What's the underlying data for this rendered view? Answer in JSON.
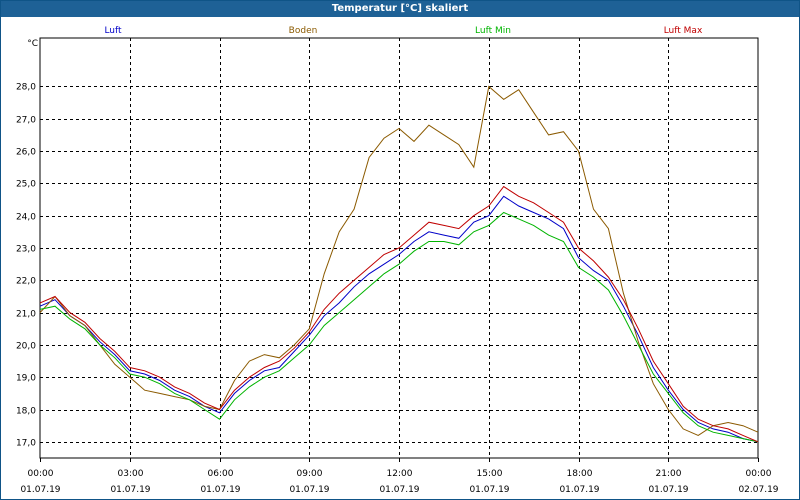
{
  "window": {
    "title": "Temperatur [°C] skaliert"
  },
  "chart_data": {
    "type": "line",
    "title": "Temperatur [°C] skaliert",
    "ylabel": "°C",
    "xlabel": "",
    "ylim": [
      16.5,
      29.5
    ],
    "xlim": [
      0,
      24
    ],
    "grid": true,
    "y_ticks": [
      17.0,
      18.0,
      19.0,
      20.0,
      21.0,
      22.0,
      23.0,
      24.0,
      25.0,
      26.0,
      27.0,
      28.0
    ],
    "y_tick_labels": [
      "17,0",
      "18,0",
      "19,0",
      "20,0",
      "21,0",
      "22,0",
      "23,0",
      "24,0",
      "25,0",
      "26,0",
      "27,0",
      "28,0"
    ],
    "x_ticks": [
      0,
      3,
      6,
      9,
      12,
      15,
      18,
      21,
      24
    ],
    "x_tick_labels": [
      {
        "time": "00:00",
        "date": "01.07.19"
      },
      {
        "time": "03:00",
        "date": "01.07.19"
      },
      {
        "time": "06:00",
        "date": "01.07.19"
      },
      {
        "time": "09:00",
        "date": "01.07.19"
      },
      {
        "time": "12:00",
        "date": "01.07.19"
      },
      {
        "time": "15:00",
        "date": "01.07.19"
      },
      {
        "time": "18:00",
        "date": "01.07.19"
      },
      {
        "time": "21:00",
        "date": "01.07.19"
      },
      {
        "time": "00:00",
        "date": "02.07.19"
      }
    ],
    "x": [
      0,
      0.5,
      1,
      1.5,
      2,
      2.5,
      3,
      3.5,
      4,
      4.5,
      5,
      5.5,
      6,
      6.5,
      7,
      7.5,
      8,
      8.5,
      9,
      9.5,
      10,
      10.5,
      11,
      11.5,
      12,
      12.5,
      13,
      13.5,
      14,
      14.5,
      15,
      15.5,
      16,
      16.5,
      17,
      17.5,
      18,
      18.5,
      19,
      19.5,
      20,
      20.5,
      21,
      21.5,
      22,
      22.5,
      23,
      23.5,
      24
    ],
    "legend": [
      "Luft",
      "Boden",
      "Luft Min",
      "Luft Max"
    ],
    "series": [
      {
        "name": "Luft",
        "color": "#0000c8",
        "values": [
          21.2,
          21.4,
          20.9,
          20.6,
          20.1,
          19.7,
          19.2,
          19.1,
          18.9,
          18.6,
          18.4,
          18.1,
          17.9,
          18.5,
          18.9,
          19.2,
          19.3,
          19.8,
          20.3,
          20.9,
          21.3,
          21.8,
          22.2,
          22.5,
          22.8,
          23.2,
          23.5,
          23.4,
          23.3,
          23.8,
          24.0,
          24.6,
          24.3,
          24.1,
          23.9,
          23.6,
          22.7,
          22.3,
          22.0,
          21.2,
          20.3,
          19.3,
          18.6,
          18.0,
          17.6,
          17.4,
          17.3,
          17.1,
          17.0
        ]
      },
      {
        "name": "Boden",
        "color": "#8b5a00",
        "values": [
          21.0,
          21.5,
          20.9,
          20.6,
          20.0,
          19.4,
          19.0,
          18.6,
          18.5,
          18.4,
          18.3,
          18.1,
          18.0,
          18.9,
          19.5,
          19.7,
          19.6,
          20.0,
          20.5,
          22.2,
          23.5,
          24.2,
          25.8,
          26.4,
          26.7,
          26.3,
          26.8,
          26.5,
          26.2,
          25.5,
          28.0,
          27.6,
          27.9,
          27.2,
          26.5,
          26.6,
          26.0,
          24.2,
          23.6,
          21.6,
          20.1,
          18.8,
          18.0,
          17.4,
          17.2,
          17.5,
          17.6,
          17.5,
          17.3
        ]
      },
      {
        "name": "Luft Min",
        "color": "#00b400",
        "values": [
          21.1,
          21.2,
          20.8,
          20.5,
          20.0,
          19.6,
          19.1,
          19.0,
          18.8,
          18.5,
          18.3,
          18.0,
          17.7,
          18.3,
          18.7,
          19.0,
          19.2,
          19.6,
          20.0,
          20.6,
          21.0,
          21.4,
          21.8,
          22.2,
          22.5,
          22.9,
          23.2,
          23.2,
          23.1,
          23.5,
          23.7,
          24.1,
          23.9,
          23.7,
          23.4,
          23.2,
          22.4,
          22.1,
          21.7,
          20.9,
          20.0,
          19.1,
          18.5,
          17.9,
          17.5,
          17.3,
          17.2,
          17.1,
          17.0
        ]
      },
      {
        "name": "Luft Max",
        "color": "#c00000",
        "values": [
          21.3,
          21.5,
          21.0,
          20.7,
          20.2,
          19.8,
          19.3,
          19.2,
          19.0,
          18.7,
          18.5,
          18.2,
          18.0,
          18.6,
          19.0,
          19.3,
          19.5,
          19.9,
          20.4,
          21.1,
          21.6,
          22.0,
          22.4,
          22.8,
          23.0,
          23.4,
          23.8,
          23.7,
          23.6,
          24.0,
          24.3,
          24.9,
          24.6,
          24.4,
          24.1,
          23.8,
          23.0,
          22.6,
          22.1,
          21.4,
          20.5,
          19.5,
          18.8,
          18.1,
          17.7,
          17.5,
          17.4,
          17.2,
          17.0
        ]
      }
    ]
  }
}
